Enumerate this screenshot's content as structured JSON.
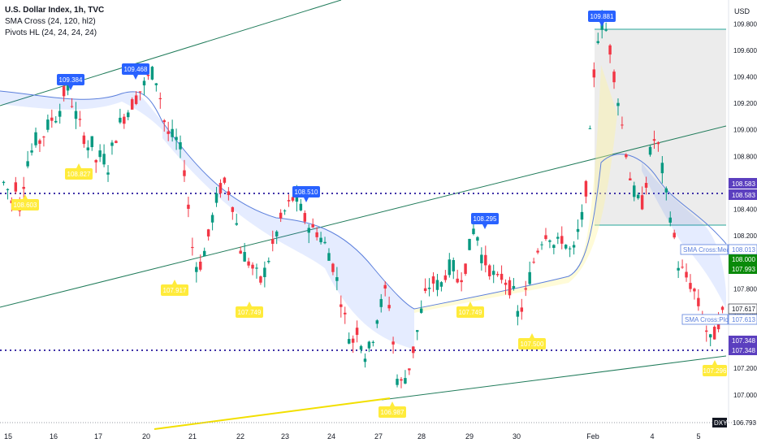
{
  "legend": {
    "title": "U.S. Dollar Index, 1h, TVC",
    "line2": "SMA Cross (24, 120, hl2)",
    "line3": "Pivots HL (24, 24, 24, 24)"
  },
  "currency": "USD",
  "price_ticks": [
    "109.800",
    "109.600",
    "109.400",
    "109.200",
    "109.000",
    "108.800",
    "108.600",
    "108.400",
    "108.200",
    "108.000",
    "107.800",
    "107.600",
    "107.400",
    "107.200",
    "107.000"
  ],
  "date_ticks": [
    "15",
    "16",
    "17",
    "20",
    "21",
    "22",
    "23",
    "24",
    "27",
    "28",
    "29",
    "30",
    "Feb",
    "4",
    "5"
  ],
  "right_badges": {
    "r1": "108.583",
    "r2": "108.583",
    "mean_label": "SMA Cross:Mean",
    "mean_val": "108.013",
    "cur": "108.000",
    "green2": "107.993",
    "p1": "107.617",
    "plot_label": "SMA Cross:Plot",
    "plot_val": "107.613",
    "v1": "107.348",
    "v2": "107.348",
    "sym": "DXY",
    "last": "106.793"
  },
  "pivots_high": [
    "109.384",
    "109.468",
    "108.510",
    "108.295",
    "109.881"
  ],
  "pivots_low": [
    "108.603",
    "108.827",
    "107.917",
    "107.749",
    "107.749",
    "107.500",
    "106.987",
    "107.296"
  ],
  "colors": {
    "up": "#089981",
    "down": "#f23645",
    "accent": "#2962ff",
    "pivot_low": "#ffeb3b",
    "dotted": "#3f32a8",
    "trend": "#217c5b",
    "channel": "#ffeb3b"
  },
  "chart_data": {
    "type": "candlestick",
    "symbol": "U.S. Dollar Index",
    "timeframe": "1h",
    "ylim": [
      106.79,
      109.98
    ],
    "levels": [
      108.583,
      107.348
    ],
    "close_path": [
      108.6,
      108.55,
      108.45,
      108.6,
      108.4,
      108.65,
      108.8,
      108.85,
      108.95,
      108.9,
      109.0,
      109.05,
      109.1,
      109.1,
      109.2,
      109.35,
      109.25,
      109.15,
      109.05,
      109.0,
      108.85,
      108.95,
      108.75,
      108.8,
      108.8,
      108.7,
      108.85,
      108.95,
      109.05,
      109.1,
      109.15,
      109.2,
      109.25,
      109.3,
      109.35,
      109.4,
      109.44,
      109.35,
      109.2,
      109.0,
      108.95,
      108.95,
      108.9,
      108.8,
      108.6,
      108.2,
      108.0,
      107.95,
      108.05,
      108.15,
      108.3,
      108.45,
      108.55,
      108.6,
      108.55,
      108.45,
      108.3,
      108.1,
      108.05,
      108.0,
      107.95,
      107.9,
      107.85,
      107.95,
      108.05,
      108.15,
      108.25,
      108.35,
      108.4,
      108.45,
      108.5,
      108.45,
      108.35,
      108.3,
      108.25,
      108.25,
      108.2,
      108.15,
      108.1,
      108.0,
      107.9,
      107.75,
      107.6,
      107.45,
      107.4,
      107.5,
      107.4,
      107.3,
      107.35,
      107.45,
      107.6,
      107.7,
      107.8,
      107.65,
      107.3,
      107.05,
      107.1,
      107.15,
      107.25,
      107.4,
      107.55,
      107.7,
      107.8,
      107.85,
      107.85,
      107.8,
      107.9,
      107.95,
      108.0,
      107.85,
      107.9,
      107.95,
      108.1,
      108.25,
      108.2,
      108.05,
      108.0,
      107.95,
      107.9,
      107.85,
      107.9,
      107.85,
      107.8,
      107.75,
      107.55,
      107.7,
      107.8,
      107.95,
      108.05,
      108.15,
      108.2,
      108.25,
      108.15,
      108.1,
      108.2,
      108.15,
      108.1,
      108.05,
      108.2,
      108.3,
      108.5,
      108.9,
      109.4,
      109.7,
      109.8,
      109.75,
      109.6,
      109.4,
      109.2,
      109.0,
      108.8,
      108.6,
      108.5,
      108.45,
      108.45,
      108.7,
      108.9,
      108.95,
      108.8,
      108.6,
      108.4,
      108.3,
      108.0,
      107.95,
      107.9,
      107.85,
      107.8,
      107.7,
      107.6,
      107.5,
      107.4,
      107.45,
      107.55,
      107.61
    ]
  }
}
